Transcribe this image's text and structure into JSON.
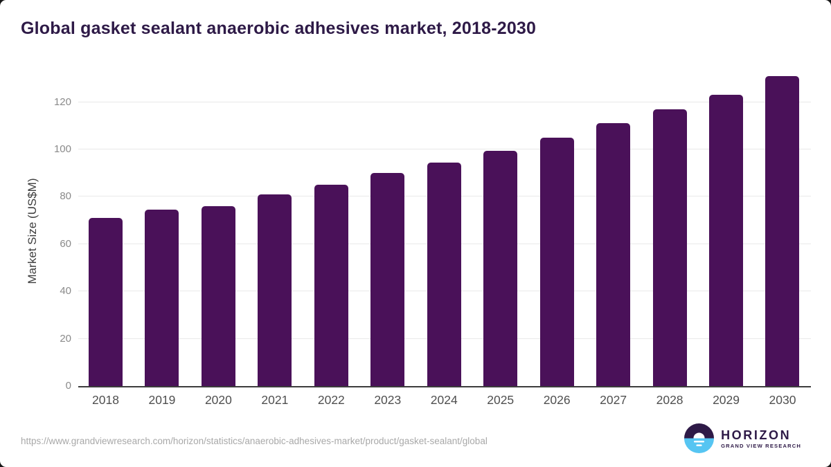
{
  "page": {
    "title": "Global gasket sealant anaerobic adhesives market, 2018-2030"
  },
  "footer": {
    "source_url": "https://www.grandviewresearch.com/horizon/statistics/anaerobic-adhesives-market/product/gasket-sealant/global",
    "logo": {
      "brand": "HORIZON",
      "sub_brand": "GRAND VIEW RESEARCH"
    }
  },
  "colors": {
    "bar": "#4a1159",
    "title_text": "#2e1a47",
    "gridline": "#e9e9e9",
    "axis_baseline": "#3c3c3c",
    "y_tick_text": "#8a8a8a",
    "x_tick_text": "#4f4f4f",
    "y_axis_label_text": "#3d3d3d",
    "source_url_text": "#a8a8a8",
    "logo_purple": "#2e1a47",
    "logo_blue": "#56c5f2"
  },
  "chart_data": {
    "type": "bar",
    "title": "Global gasket sealant anaerobic adhesives market, 2018-2030",
    "categories": [
      "2018",
      "2019",
      "2020",
      "2021",
      "2022",
      "2023",
      "2024",
      "2025",
      "2026",
      "2027",
      "2028",
      "2029",
      "2030"
    ],
    "values": [
      71,
      74.5,
      76,
      81,
      85,
      90,
      94.5,
      99.5,
      105,
      111,
      117,
      123,
      131
    ],
    "xlabel": "",
    "ylabel": "Market Size (US$M)",
    "ylim": [
      0,
      131
    ],
    "yticks": [
      0,
      20,
      40,
      60,
      80,
      100,
      120
    ],
    "grid": true,
    "legend": false,
    "bar_color": "#4a1159"
  }
}
